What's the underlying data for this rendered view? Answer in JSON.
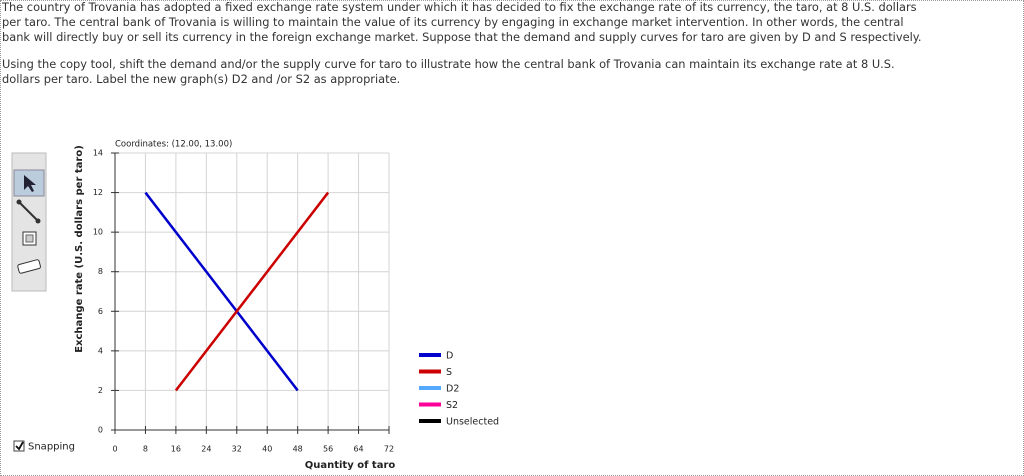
{
  "instructions": {
    "paragraphs": [
      "The country of Trovania has adopted a fixed exchange rate system under which it has decided to fix the exchange rate of its currency, the taro, at 8 U.S. dollars per taro. The central bank of Trovania is willing to maintain the value of its currency by engaging in exchange market intervention. In other words, the central bank will directly buy or sell its currency in the foreign exchange market. Suppose that the demand and supply curves for taro are given by D and S respectively.",
      "Using the copy tool, shift the demand and/or the supply curve for taro to illustrate how the central bank of Trovania can maintain its exchange rate at 8 U.S. dollars per taro. Label the new graph(s) D2 and /or S2 as appropriate."
    ]
  },
  "toolbar": {
    "snapping": "Snapping"
  },
  "chart_data": {
    "type": "line",
    "annotation": "Coordinates: (12.00, 13.00)",
    "x_label": "Quantity of taro",
    "y_label": "Exchange rate (U.S. dollars per taro)",
    "xlim": [
      0,
      72
    ],
    "xticks": [
      0,
      8,
      16,
      24,
      32,
      40,
      48,
      56,
      64,
      72
    ],
    "ylim": [
      0,
      14
    ],
    "yticks": [
      0,
      2,
      4,
      6,
      8,
      10,
      12,
      14
    ],
    "grid": true,
    "series": [
      {
        "name": "D",
        "color": "#0000cc",
        "x": [
          8,
          48
        ],
        "values": [
          12,
          2
        ]
      },
      {
        "name": "S",
        "color": "#cc0000",
        "x": [
          16,
          56
        ],
        "values": [
          2,
          12
        ]
      },
      {
        "name": "D2",
        "color": "#55aaff"
      },
      {
        "name": "S2",
        "color": "#ff0099"
      },
      {
        "name": "Unselected",
        "color": "#000000"
      }
    ]
  }
}
